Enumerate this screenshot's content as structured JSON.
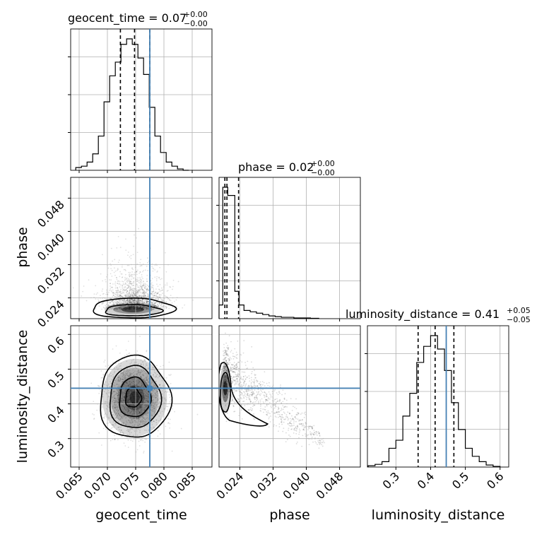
{
  "chart_data": {
    "type": "corner",
    "params": [
      "geocent_time",
      "phase",
      "luminosity_distance"
    ],
    "truth_color": "#4682b4",
    "truths": {
      "geocent_time": 0.0775,
      "phase": 0.02,
      "luminosity_distance": 0.445
    },
    "titles": {
      "geocent_time": {
        "name": "geocent_time",
        "value": "0.07",
        "plus": "+0.00",
        "minus": "−0.00"
      },
      "phase": {
        "name": "phase",
        "value": "0.02",
        "plus": "+0.00",
        "minus": "−0.00"
      },
      "luminosity_distance": {
        "name": "luminosity_distance",
        "value": "0.41",
        "plus": "+0.05",
        "minus": "−0.05"
      }
    },
    "ranges": {
      "geocent_time": [
        0.0635,
        0.0885
      ],
      "phase": [
        0.019,
        0.053
      ],
      "luminosity_distance": [
        0.218,
        0.625
      ]
    },
    "ticks": {
      "geocent_time": [
        "0.065",
        "0.070",
        "0.075",
        "0.080",
        "0.085"
      ],
      "phase": [
        "0.024",
        "0.032",
        "0.040",
        "0.048"
      ],
      "luminosity_distance": [
        "0.3",
        "0.4",
        "0.5",
        "0.6"
      ]
    },
    "quantiles": {
      "geocent_time": [
        0.0723,
        0.0748,
        0.0775
      ],
      "phase": [
        0.0204,
        0.0209,
        0.0237
      ],
      "luminosity_distance": [
        0.364,
        0.413,
        0.467
      ]
    },
    "hist_geocent_time": {
      "edges": [
        0.0644,
        0.0654,
        0.0664,
        0.0674,
        0.0684,
        0.0694,
        0.0704,
        0.0714,
        0.0724,
        0.0734,
        0.0744,
        0.0754,
        0.0764,
        0.0774,
        0.0784,
        0.0794,
        0.0804,
        0.0814,
        0.0824,
        0.0834,
        0.0844
      ],
      "counts": [
        2,
        3,
        6,
        12,
        25,
        50,
        69,
        79,
        92,
        96,
        92,
        82,
        70,
        46,
        25,
        13,
        6,
        3,
        1,
        0
      ]
    },
    "hist_phase": {
      "edges": [
        0.019,
        0.0199,
        0.0211,
        0.0228,
        0.0238,
        0.025,
        0.0265,
        0.028,
        0.0295,
        0.031,
        0.0325,
        0.034,
        0.0355,
        0.037,
        0.039,
        0.041,
        0.043
      ],
      "counts": [
        10,
        96,
        90,
        20,
        10,
        6,
        5,
        4,
        3,
        2,
        1.5,
        1,
        1,
        0.5,
        0.5,
        0.3
      ]
    },
    "hist_luminosity_distance": {
      "edges": [
        0.22,
        0.24,
        0.26,
        0.28,
        0.3,
        0.32,
        0.34,
        0.36,
        0.38,
        0.4,
        0.42,
        0.44,
        0.46,
        0.48,
        0.5,
        0.52,
        0.54,
        0.56,
        0.58,
        0.6
      ],
      "counts": [
        1,
        2,
        4,
        14,
        20,
        38,
        55,
        78,
        90,
        98,
        88,
        72,
        48,
        28,
        14,
        8,
        4,
        1.5,
        0.5
      ]
    }
  }
}
